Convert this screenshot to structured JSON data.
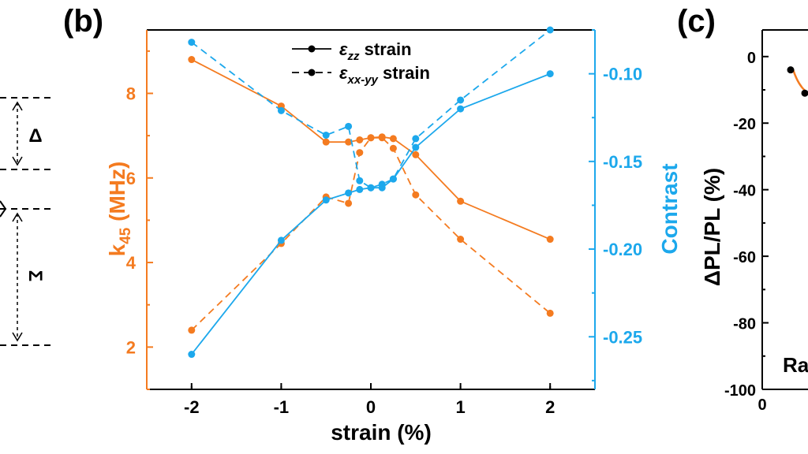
{
  "colors": {
    "orange": "#F47B20",
    "blue": "#1CA8EC",
    "black": "#000000"
  },
  "panel_b_label": "(b)",
  "panel_c_label": "(c)",
  "left_fragment": {
    "delta_label": "Δ",
    "sigma_label": "Σ"
  },
  "chart_data": [
    {
      "panel": "b",
      "type": "line",
      "xlabel": "strain (%)",
      "ylabel_left": {
        "main": "k",
        "sub": "45",
        "rest": " (MHz)"
      },
      "ylabel_right": "Contrast",
      "xlim": [
        -2.5,
        2.5
      ],
      "ylim_left": [
        1.0,
        9.5
      ],
      "ylim_right": [
        -0.28,
        -0.075
      ],
      "x_ticks": [
        -2,
        -1,
        0,
        1,
        2
      ],
      "x_tick_labels": [
        "-2",
        "-1",
        "0",
        "1",
        "2"
      ],
      "y_left_ticks": [
        2,
        4,
        6,
        8
      ],
      "y_left_tick_labels": [
        "2",
        "4",
        "6",
        "8"
      ],
      "y_right_ticks": [
        -0.25,
        -0.2,
        -0.15,
        -0.1
      ],
      "y_right_tick_labels": [
        "-0.25",
        "-0.20",
        "-0.15",
        "-0.10"
      ],
      "legend": [
        {
          "label_main": "ε",
          "label_sub": "zz",
          "label_rest": " strain",
          "style": "solid"
        },
        {
          "label_main": "ε",
          "label_sub": "xx-yy",
          "label_rest": " strain",
          "style": "dashed"
        }
      ],
      "series": [
        {
          "name": "k45 εzz",
          "axis": "left",
          "color": "orange",
          "style": "solid",
          "x": [
            -2,
            -1,
            -0.5,
            -0.25,
            -0.125,
            0,
            0.125,
            0.25,
            0.5,
            1,
            2
          ],
          "y": [
            8.8,
            7.7,
            6.85,
            6.85,
            6.9,
            6.95,
            6.97,
            6.93,
            6.55,
            5.45,
            4.55
          ]
        },
        {
          "name": "k45 εxx-yy",
          "axis": "left",
          "color": "orange",
          "style": "dashed",
          "x": [
            -2,
            -1,
            -0.5,
            -0.25,
            -0.125,
            0,
            0.125,
            0.25,
            0.5,
            1,
            2
          ],
          "y": [
            2.4,
            4.45,
            5.55,
            5.4,
            6.6,
            6.95,
            6.95,
            6.7,
            5.6,
            4.55,
            2.8
          ]
        },
        {
          "name": "Contrast εzz",
          "axis": "right",
          "color": "blue",
          "style": "solid",
          "x": [
            -2,
            -1,
            -0.5,
            -0.25,
            -0.125,
            0,
            0.125,
            0.25,
            0.5,
            1,
            2
          ],
          "y": [
            -0.26,
            -0.195,
            -0.172,
            -0.168,
            -0.166,
            -0.165,
            -0.165,
            -0.16,
            -0.142,
            -0.12,
            -0.1
          ]
        },
        {
          "name": "Contrast εxx-yy",
          "axis": "right",
          "color": "blue",
          "style": "dashed",
          "x": [
            -2,
            -1,
            -0.5,
            -0.25,
            -0.125,
            0,
            0.125,
            0.25,
            0.5,
            1,
            2
          ],
          "y": [
            -0.082,
            -0.121,
            -0.135,
            -0.13,
            -0.161,
            -0.165,
            -0.163,
            -0.16,
            -0.137,
            -0.115,
            -0.075
          ]
        }
      ]
    },
    {
      "panel": "c",
      "type": "line",
      "ylabel": "ΔPL/PL (%)",
      "ylim": [
        -100,
        8
      ],
      "y_ticks": [
        0,
        -20,
        -40,
        -60,
        -80,
        -100
      ],
      "y_tick_labels": [
        "0",
        "-20",
        "-40",
        "-60",
        "-80",
        "-100"
      ],
      "x_tick_labels": [
        "0"
      ],
      "annotation": "Ra",
      "points_y": [
        -4,
        -11
      ]
    }
  ]
}
